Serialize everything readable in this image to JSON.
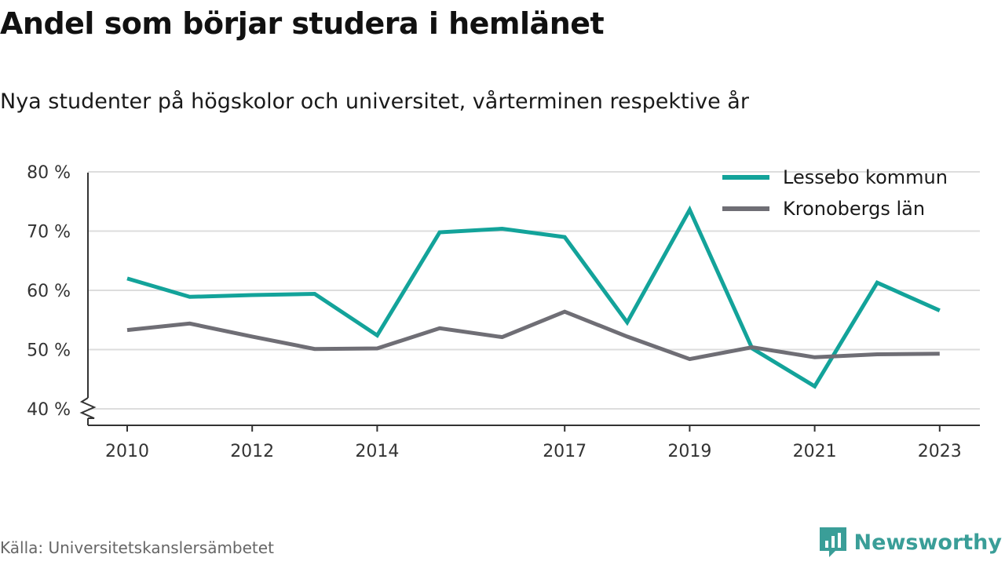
{
  "title": "Andel som börjar studera i hemlänet",
  "subtitle": "Nya studenter på högskolor och universitet, vårterminen respektive år",
  "source": "Källa: Universitetskanslersämbetet",
  "brand": {
    "name": "Newsworthy",
    "icon": "newsworthy-logo-icon",
    "color": "#3a9e98"
  },
  "colors": {
    "lessebo": "#13a39a",
    "kronoberg": "#6f6e75",
    "grid": "#dddddd",
    "axis": "#333333"
  },
  "chart_data": {
    "type": "line",
    "title": "Andel som börjar studera i hemlänet",
    "subtitle": "Nya studenter på högskolor och universitet, vårterminen respektive år",
    "x": [
      2010,
      2011,
      2012,
      2013,
      2014,
      2015,
      2016,
      2017,
      2018,
      2019,
      2020,
      2021,
      2022,
      2023
    ],
    "x_tick_labels": [
      "2010",
      "2012",
      "2014",
      "2017",
      "2019",
      "2021",
      "2023"
    ],
    "y_ticks": [
      40,
      50,
      60,
      70,
      80
    ],
    "y_tick_labels": [
      "40 %",
      "50 %",
      "60 %",
      "70 %",
      "80 %"
    ],
    "ylim": [
      40,
      80
    ],
    "y_axis_break": true,
    "grid": true,
    "legend_position": "top-right",
    "series": [
      {
        "name": "Lessebo kommun",
        "color": "#13a39a",
        "values": [
          62.0,
          58.9,
          59.2,
          59.4,
          52.4,
          69.8,
          70.4,
          69.0,
          54.6,
          73.6,
          50.2,
          43.8,
          61.3,
          56.6
        ]
      },
      {
        "name": "Kronobergs län",
        "color": "#6f6e75",
        "values": [
          53.3,
          54.4,
          52.2,
          50.1,
          50.2,
          53.6,
          52.1,
          56.4,
          52.2,
          48.4,
          50.4,
          48.7,
          49.2,
          49.3
        ]
      }
    ]
  }
}
